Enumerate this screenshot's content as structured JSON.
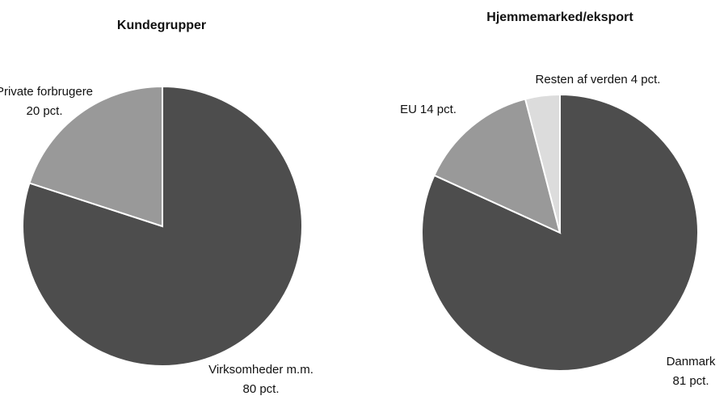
{
  "chart_data": [
    {
      "type": "pie",
      "title": "Kundegrupper",
      "categories": [
        "Virksomheder m.m.",
        "Private forbrugere"
      ],
      "values": [
        80,
        20
      ],
      "value_labels": [
        "80 pct.",
        "20 pct."
      ],
      "colors": [
        "#4d4d4d",
        "#999999"
      ]
    },
    {
      "type": "pie",
      "title": "Hjemmemarked/eksport",
      "categories": [
        "Danmark",
        "EU",
        "Resten af verden"
      ],
      "values": [
        81,
        14,
        4
      ],
      "value_labels": [
        "81 pct.",
        "14 pct.",
        "4 pct."
      ],
      "colors": [
        "#4d4d4d",
        "#999999",
        "#dcdcdc"
      ]
    }
  ]
}
